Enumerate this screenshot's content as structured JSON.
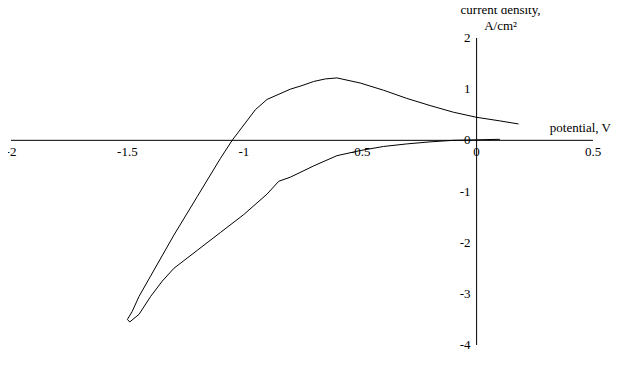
{
  "chart_data": {
    "type": "line",
    "x_label": "potential, V",
    "y_label": "current density, A/cm²",
    "x": [
      0.18,
      0.1,
      0.0,
      -0.1,
      -0.2,
      -0.3,
      -0.4,
      -0.5,
      -0.6,
      -0.65,
      -0.7,
      -0.75,
      -0.8,
      -0.9,
      -0.95,
      -1.0,
      -1.05,
      -1.1,
      -1.2,
      -1.3,
      -1.4,
      -1.45,
      -1.48,
      -1.5,
      -1.49,
      -1.45,
      -1.4,
      -1.35,
      -1.3,
      -1.2,
      -1.1,
      -1.0,
      -0.9,
      -0.85,
      -0.8,
      -0.7,
      -0.6,
      -0.5,
      -0.4,
      -0.3,
      -0.2,
      -0.1,
      0.0,
      0.1
    ],
    "values": [
      0.32,
      0.38,
      0.45,
      0.55,
      0.68,
      0.82,
      0.98,
      1.12,
      1.22,
      1.2,
      1.15,
      1.07,
      1.0,
      0.8,
      0.6,
      0.3,
      0.0,
      -0.35,
      -1.1,
      -1.85,
      -2.65,
      -3.05,
      -3.35,
      -3.5,
      -3.55,
      -3.4,
      -3.05,
      -2.75,
      -2.5,
      -2.15,
      -1.8,
      -1.45,
      -1.05,
      -0.8,
      -0.72,
      -0.5,
      -0.3,
      -0.2,
      -0.12,
      -0.07,
      -0.03,
      0.0,
      0.01,
      0.02
    ],
    "color": "#000000",
    "xlim": [
      -2,
      0.5
    ],
    "xticks": [
      -2,
      -1.5,
      -1,
      -0.5,
      0,
      0.5
    ],
    "ylim": [
      -4,
      2
    ],
    "yticks": [
      -4,
      -3,
      -2,
      -1,
      0,
      1,
      2
    ],
    "grid": false
  }
}
